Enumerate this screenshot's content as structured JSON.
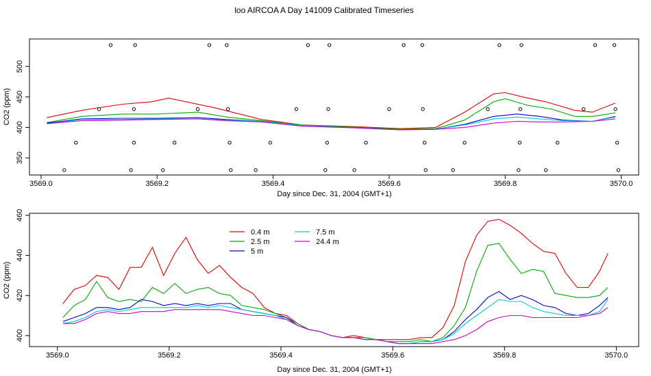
{
  "title": "loo AIRCOA A  Day 141009  Calibrated Timeseries",
  "chart_data": [
    {
      "type": "scatter+line",
      "xlabel": "Day since Dec. 31, 2004 (GMT+1)",
      "ylabel": "CO2 (ppm)",
      "xlim": [
        3568.98,
        3570.03
      ],
      "ylim": [
        322,
        545
      ],
      "xticks": [
        "3569.0",
        "3569.2",
        "3569.4",
        "3569.6",
        "3569.8",
        "3570.0"
      ],
      "yticks": [
        "350",
        "400",
        "450",
        "500"
      ],
      "points": [
        [
          3569.04,
          330
        ],
        [
          3569.06,
          375
        ],
        [
          3569.1,
          430
        ],
        [
          3569.12,
          535
        ],
        [
          3569.155,
          330
        ],
        [
          3569.16,
          375
        ],
        [
          3569.16,
          430
        ],
        [
          3569.162,
          535
        ],
        [
          3569.21,
          330
        ],
        [
          3569.23,
          375
        ],
        [
          3569.27,
          430
        ],
        [
          3569.29,
          535
        ],
        [
          3569.32,
          535
        ],
        [
          3569.322,
          430
        ],
        [
          3569.325,
          375
        ],
        [
          3569.327,
          330
        ],
        [
          3569.37,
          330
        ],
        [
          3569.395,
          375
        ],
        [
          3569.44,
          430
        ],
        [
          3569.46,
          535
        ],
        [
          3569.49,
          330
        ],
        [
          3569.493,
          375
        ],
        [
          3569.495,
          430
        ],
        [
          3569.497,
          535
        ],
        [
          3569.54,
          330
        ],
        [
          3569.56,
          375
        ],
        [
          3569.6,
          430
        ],
        [
          3569.625,
          535
        ],
        [
          3569.657,
          535
        ],
        [
          3569.658,
          430
        ],
        [
          3569.661,
          375
        ],
        [
          3569.663,
          330
        ],
        [
          3569.71,
          330
        ],
        [
          3569.73,
          375
        ],
        [
          3569.77,
          430
        ],
        [
          3569.79,
          535
        ],
        [
          3569.823,
          330
        ],
        [
          3569.825,
          375
        ],
        [
          3569.826,
          430
        ],
        [
          3569.828,
          535
        ],
        [
          3569.87,
          330
        ],
        [
          3569.89,
          375
        ],
        [
          3569.935,
          430
        ],
        [
          3569.955,
          535
        ],
        [
          3569.988,
          535
        ],
        [
          3569.99,
          430
        ],
        [
          3569.993,
          375
        ],
        [
          3569.995,
          330
        ]
      ],
      "series": [
        {
          "name": "0.4 m",
          "color": "#dd0000",
          "values": [
            [
              3569.01,
              416
            ],
            [
              3569.07,
              428
            ],
            [
              3569.14,
              438
            ],
            [
              3569.19,
              442
            ],
            [
              3569.22,
              448
            ],
            [
              3569.3,
              432
            ],
            [
              3569.38,
              413
            ],
            [
              3569.45,
              404
            ],
            [
              3569.55,
              401
            ],
            [
              3569.62,
              398
            ],
            [
              3569.68,
              400
            ],
            [
              3569.73,
              425
            ],
            [
              3569.78,
              455
            ],
            [
              3569.8,
              457
            ],
            [
              3569.83,
              450
            ],
            [
              3569.87,
              442
            ],
            [
              3569.92,
              428
            ],
            [
              3569.95,
              425
            ],
            [
              3569.99,
              440
            ]
          ]
        },
        {
          "name": "2.5 m",
          "color": "#00aa00",
          "values": [
            [
              3569.01,
              408
            ],
            [
              3569.07,
              418
            ],
            [
              3569.14,
              422
            ],
            [
              3569.2,
              422
            ],
            [
              3569.27,
              425
            ],
            [
              3569.32,
              417
            ],
            [
              3569.38,
              411
            ],
            [
              3569.45,
              404
            ],
            [
              3569.55,
              400
            ],
            [
              3569.62,
              397
            ],
            [
              3569.68,
              398
            ],
            [
              3569.73,
              412
            ],
            [
              3569.78,
              442
            ],
            [
              3569.8,
              447
            ],
            [
              3569.84,
              436
            ],
            [
              3569.88,
              430
            ],
            [
              3569.92,
              418
            ],
            [
              3569.95,
              418
            ],
            [
              3569.99,
              424
            ]
          ]
        },
        {
          "name": "5 m",
          "color": "#0000cc",
          "values": [
            [
              3569.01,
              407
            ],
            [
              3569.07,
              414
            ],
            [
              3569.14,
              415
            ],
            [
              3569.2,
              415
            ],
            [
              3569.27,
              416
            ],
            [
              3569.32,
              413
            ],
            [
              3569.38,
              410
            ],
            [
              3569.45,
              403
            ],
            [
              3569.55,
              399
            ],
            [
              3569.62,
              396
            ],
            [
              3569.68,
              397
            ],
            [
              3569.73,
              405
            ],
            [
              3569.78,
              418
            ],
            [
              3569.82,
              422
            ],
            [
              3569.86,
              418
            ],
            [
              3569.9,
              412
            ],
            [
              3569.95,
              410
            ],
            [
              3569.99,
              418
            ]
          ]
        },
        {
          "name": "7.5 m",
          "color": "#00cccc",
          "values": [
            [
              3569.01,
              406
            ],
            [
              3569.07,
              413
            ],
            [
              3569.14,
              413
            ],
            [
              3569.2,
              414
            ],
            [
              3569.27,
              414
            ],
            [
              3569.32,
              412
            ],
            [
              3569.38,
              410
            ],
            [
              3569.45,
              403
            ],
            [
              3569.55,
              399
            ],
            [
              3569.62,
              396
            ],
            [
              3569.68,
              397
            ],
            [
              3569.73,
              404
            ],
            [
              3569.78,
              414
            ],
            [
              3569.82,
              417
            ],
            [
              3569.86,
              414
            ],
            [
              3569.9,
              411
            ],
            [
              3569.95,
              410
            ],
            [
              3569.99,
              417
            ]
          ]
        },
        {
          "name": "24.4 m",
          "color": "#cc00cc",
          "values": [
            [
              3569.01,
              406
            ],
            [
              3569.07,
              411
            ],
            [
              3569.14,
              412
            ],
            [
              3569.2,
              413
            ],
            [
              3569.27,
              414
            ],
            [
              3569.32,
              411
            ],
            [
              3569.38,
              409
            ],
            [
              3569.45,
              402
            ],
            [
              3569.55,
              399
            ],
            [
              3569.62,
              396
            ],
            [
              3569.68,
              397
            ],
            [
              3569.73,
              400
            ],
            [
              3569.78,
              407
            ],
            [
              3569.82,
              410
            ],
            [
              3569.86,
              409
            ],
            [
              3569.9,
              409
            ],
            [
              3569.95,
              410
            ],
            [
              3569.99,
              414
            ]
          ]
        }
      ]
    },
    {
      "type": "line",
      "xlabel": "Day since Dec. 31, 2004 (GMT+1)",
      "ylabel": "CO2 (ppm)",
      "xlim": [
        3568.95,
        3570.04
      ],
      "ylim": [
        394.5,
        461
      ],
      "xticks": [
        "3569.0",
        "3569.2",
        "3569.4",
        "3569.6",
        "3569.8",
        "3570.0"
      ],
      "yticks": [
        "400",
        "420",
        "440",
        "460"
      ],
      "legend_position": "top-left",
      "x": [
        3569.01,
        3569.03,
        3569.05,
        3569.07,
        3569.09,
        3569.11,
        3569.13,
        3569.15,
        3569.17,
        3569.19,
        3569.21,
        3569.23,
        3569.25,
        3569.27,
        3569.29,
        3569.31,
        3569.33,
        3569.35,
        3569.37,
        3569.39,
        3569.41,
        3569.43,
        3569.45,
        3569.47,
        3569.49,
        3569.51,
        3569.53,
        3569.55,
        3569.57,
        3569.59,
        3569.61,
        3569.63,
        3569.65,
        3569.67,
        3569.69,
        3569.71,
        3569.73,
        3569.75,
        3569.77,
        3569.79,
        3569.81,
        3569.83,
        3569.85,
        3569.87,
        3569.89,
        3569.91,
        3569.93,
        3569.95,
        3569.97,
        3569.985
      ],
      "series": [
        {
          "name": "0.4 m",
          "color": "#dd0000",
          "values": [
            416,
            423,
            425,
            430,
            429,
            423,
            434,
            434,
            444,
            430,
            441,
            449,
            438,
            431,
            435,
            429,
            424,
            421,
            414,
            411,
            410,
            406,
            403,
            402,
            400,
            399,
            400,
            399,
            398,
            398,
            398,
            398,
            399,
            399,
            404,
            415,
            437,
            450,
            457,
            458,
            455,
            451,
            446,
            442,
            441,
            431,
            424,
            424,
            432,
            441
          ]
        },
        {
          "name": "2.5 m",
          "color": "#00aa00",
          "values": [
            409,
            415,
            418,
            427,
            419,
            417,
            418,
            417,
            424,
            421,
            426,
            421,
            423,
            424,
            421,
            420,
            415,
            414,
            413,
            411,
            409,
            406,
            403,
            402,
            400,
            399,
            399,
            399,
            398,
            397,
            397,
            397,
            398,
            397,
            399,
            405,
            414,
            432,
            445,
            446,
            438,
            431,
            433,
            432,
            421,
            420,
            419,
            419,
            420,
            424
          ]
        },
        {
          "name": "5 m",
          "color": "#0000cc",
          "values": [
            407,
            409,
            411,
            414,
            414,
            413,
            414,
            418,
            417,
            415,
            416,
            415,
            416,
            415,
            416,
            416,
            413,
            412,
            411,
            410,
            409,
            405,
            403,
            402,
            400,
            399,
            399,
            398,
            398,
            397,
            396,
            396,
            397,
            397,
            398,
            402,
            408,
            413,
            419,
            422,
            418,
            420,
            418,
            415,
            414,
            411,
            410,
            411,
            415,
            419
          ]
        },
        {
          "name": "7.5 m",
          "color": "#00cccc",
          "values": [
            406,
            407,
            409,
            412,
            413,
            412,
            413,
            414,
            414,
            414,
            414,
            414,
            415,
            414,
            415,
            414,
            413,
            412,
            411,
            410,
            408,
            405,
            403,
            402,
            400,
            399,
            399,
            398,
            398,
            397,
            396,
            396,
            397,
            397,
            398,
            401,
            406,
            410,
            414,
            418,
            417,
            417,
            414,
            412,
            411,
            410,
            410,
            410,
            412,
            418
          ]
        },
        {
          "name": "24.4 m",
          "color": "#cc00cc",
          "values": [
            406,
            406,
            408,
            411,
            412,
            411,
            411,
            412,
            412,
            412,
            413,
            413,
            413,
            413,
            413,
            412,
            411,
            410,
            410,
            409,
            408,
            405,
            403,
            402,
            400,
            399,
            399,
            398,
            398,
            397,
            396,
            396,
            396,
            396,
            397,
            398,
            400,
            403,
            407,
            409,
            410,
            410,
            409,
            409,
            409,
            409,
            409,
            410,
            411,
            414
          ]
        }
      ]
    }
  ]
}
